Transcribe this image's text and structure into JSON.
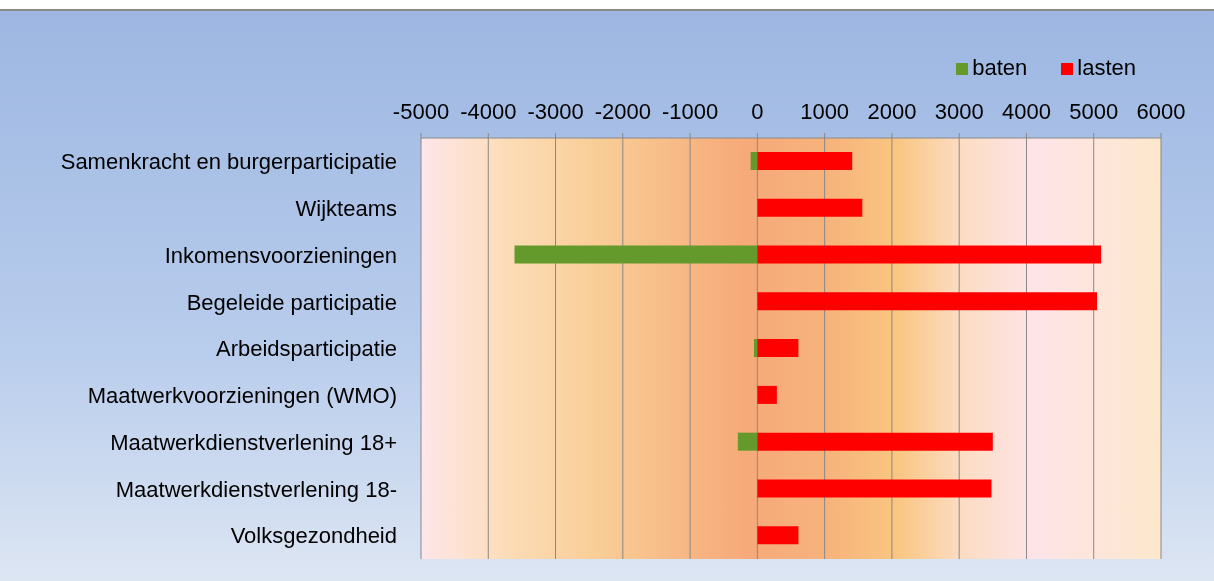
{
  "chart_data": {
    "type": "bar",
    "orientation": "horizontal",
    "stacked": true,
    "categories": [
      "Samenkracht en burgerparticipatie",
      "Wijkteams",
      "Inkomensvoorzieningen",
      "Begeleide participatie",
      "Arbeidsparticipatie",
      "Maatwerkvoorzieningen (WMO)",
      "Maatwerkdienstverlening 18+",
      "Maatwerkdienstverlening 18-",
      "Volksgezondheid"
    ],
    "series": [
      {
        "name": "baten",
        "color": "#64992c",
        "values": [
          -100,
          0,
          -3610,
          0,
          -50,
          0,
          -290,
          0,
          0
        ]
      },
      {
        "name": "lasten",
        "color": "#ff0000",
        "values": [
          1410,
          1560,
          5110,
          5050,
          610,
          290,
          3500,
          3480,
          610
        ]
      }
    ],
    "xlim": [
      -5000,
      6000
    ],
    "xticks": [
      -5000,
      -4000,
      -3000,
      -2000,
      -1000,
      0,
      1000,
      2000,
      3000,
      4000,
      5000,
      6000
    ],
    "grid": "x",
    "legend": "top right"
  }
}
